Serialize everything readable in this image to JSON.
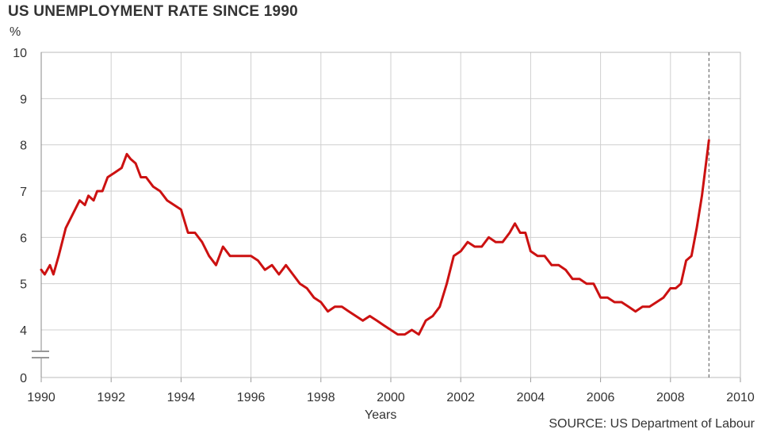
{
  "title": "US UNEMPLOYMENT RATE SINCE 1990",
  "unit": "%",
  "source": "SOURCE: US Department of Labour",
  "chart_data": {
    "type": "line",
    "title": "US UNEMPLOYMENT RATE SINCE 1990",
    "xlabel": "Years",
    "ylabel": "%",
    "xlim": [
      1990,
      2010
    ],
    "ylim": [
      0,
      10
    ],
    "y_axis_break": [
      0,
      3.5
    ],
    "x_ticks": [
      "1990",
      "1992",
      "1994",
      "1996",
      "1998",
      "2000",
      "2002",
      "2004",
      "2006",
      "2008",
      "2010"
    ],
    "y_ticks": [
      "0",
      "4",
      "5",
      "6",
      "7",
      "8",
      "9",
      "10"
    ],
    "grid": true,
    "line_color": "#cc1111",
    "marker_line": {
      "x": 2009.1,
      "style": "dashed"
    },
    "series": [
      {
        "x": [
          1990.0,
          1990.1,
          1990.25,
          1990.35,
          1990.5,
          1990.7,
          1990.9,
          1991.1,
          1991.25,
          1991.35,
          1991.5,
          1991.6,
          1991.75,
          1991.9,
          1992.1,
          1992.3,
          1992.45,
          1992.55,
          1992.7,
          1992.85,
          1993.0,
          1993.2,
          1993.4,
          1993.6,
          1993.8,
          1994.0,
          1994.2,
          1994.4,
          1994.6,
          1994.8,
          1995.0,
          1995.2,
          1995.4,
          1995.6,
          1995.8,
          1996.0,
          1996.2,
          1996.4,
          1996.6,
          1996.8,
          1997.0,
          1997.2,
          1997.4,
          1997.6,
          1997.8,
          1998.0,
          1998.2,
          1998.4,
          1998.6,
          1998.8,
          1999.0,
          1999.2,
          1999.4,
          1999.6,
          1999.8,
          2000.0,
          2000.2,
          2000.4,
          2000.6,
          2000.8,
          2001.0,
          2001.2,
          2001.4,
          2001.6,
          2001.8,
          2002.0,
          2002.2,
          2002.4,
          2002.6,
          2002.8,
          2003.0,
          2003.2,
          2003.4,
          2003.55,
          2003.7,
          2003.85,
          2004.0,
          2004.2,
          2004.4,
          2004.6,
          2004.8,
          2005.0,
          2005.2,
          2005.4,
          2005.6,
          2005.8,
          2006.0,
          2006.2,
          2006.4,
          2006.6,
          2006.8,
          2007.0,
          2007.2,
          2007.4,
          2007.6,
          2007.8,
          2008.0,
          2008.15,
          2008.3,
          2008.45,
          2008.6,
          2008.75,
          2008.9,
          2009.1
        ],
        "y": [
          5.3,
          5.2,
          5.4,
          5.2,
          5.6,
          6.2,
          6.5,
          6.8,
          6.7,
          6.9,
          6.8,
          7.0,
          7.0,
          7.3,
          7.4,
          7.5,
          7.8,
          7.7,
          7.6,
          7.3,
          7.3,
          7.1,
          7.0,
          6.8,
          6.7,
          6.6,
          6.1,
          6.1,
          5.9,
          5.6,
          5.4,
          5.8,
          5.6,
          5.6,
          5.6,
          5.6,
          5.5,
          5.3,
          5.4,
          5.2,
          5.4,
          5.2,
          5.0,
          4.9,
          4.7,
          4.6,
          4.4,
          4.5,
          4.5,
          4.4,
          4.3,
          4.2,
          4.3,
          4.2,
          4.1,
          4.0,
          3.9,
          3.9,
          4.0,
          3.9,
          4.2,
          4.3,
          4.5,
          5.0,
          5.6,
          5.7,
          5.9,
          5.8,
          5.8,
          6.0,
          5.9,
          5.9,
          6.1,
          6.3,
          6.1,
          6.1,
          5.7,
          5.6,
          5.6,
          5.4,
          5.4,
          5.3,
          5.1,
          5.1,
          5.0,
          5.0,
          4.7,
          4.7,
          4.6,
          4.6,
          4.5,
          4.4,
          4.5,
          4.5,
          4.6,
          4.7,
          4.9,
          4.9,
          5.0,
          5.5,
          5.6,
          6.2,
          6.9,
          8.1
        ]
      }
    ]
  }
}
